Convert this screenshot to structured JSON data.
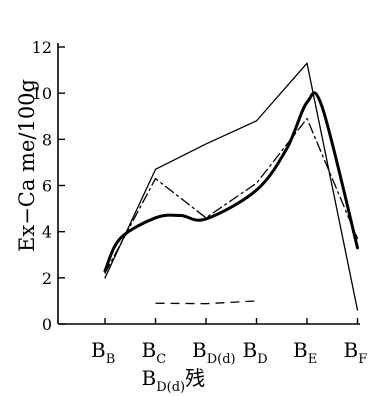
{
  "chart_data": {
    "type": "line",
    "title": "",
    "ylabel": "Ex−Ca me/100g",
    "xlabel": "",
    "ylim": [
      0,
      12
    ],
    "yticks": [
      0,
      2,
      4,
      6,
      8,
      10,
      12
    ],
    "grid": false,
    "legend": "none",
    "categories": [
      {
        "main": "B",
        "sub": "B"
      },
      {
        "main": "B",
        "sub": "C"
      },
      {
        "main": "B",
        "sub": "D(d)"
      },
      {
        "main": "B",
        "sub": "D"
      },
      {
        "main": "B",
        "sub": "E"
      },
      {
        "main": "B",
        "sub": "F"
      }
    ],
    "extra_category": {
      "main": "B",
      "sub": "D(d)",
      "suffix": "残",
      "x": 1
    },
    "series": [
      {
        "style": "solid-thin",
        "color": "#000000",
        "points": [
          [
            0,
            2.0
          ],
          [
            1,
            6.7
          ],
          [
            2,
            7.8
          ],
          [
            3,
            8.8
          ],
          [
            4,
            11.3
          ],
          [
            5,
            0.6
          ]
        ]
      },
      {
        "style": "dash-dot",
        "color": "#000000",
        "points": [
          [
            0,
            2.2
          ],
          [
            1,
            6.3
          ],
          [
            2,
            4.6
          ],
          [
            3,
            6.1
          ],
          [
            4,
            8.9
          ],
          [
            5,
            3.7
          ]
        ]
      },
      {
        "style": "solid-thick",
        "color": "#000000",
        "points": [
          [
            0,
            2.3
          ],
          [
            0.3,
            3.7
          ],
          [
            1,
            4.6
          ],
          [
            1.5,
            4.7
          ],
          [
            2,
            4.55
          ],
          [
            3,
            5.8
          ],
          [
            3.6,
            7.6
          ],
          [
            4,
            9.6
          ],
          [
            4.3,
            9.4
          ],
          [
            5,
            3.3
          ]
        ]
      },
      {
        "style": "long-dash",
        "color": "#000000",
        "points": [
          [
            1,
            0.9
          ],
          [
            2,
            0.88
          ],
          [
            3,
            1.0
          ]
        ]
      }
    ]
  }
}
